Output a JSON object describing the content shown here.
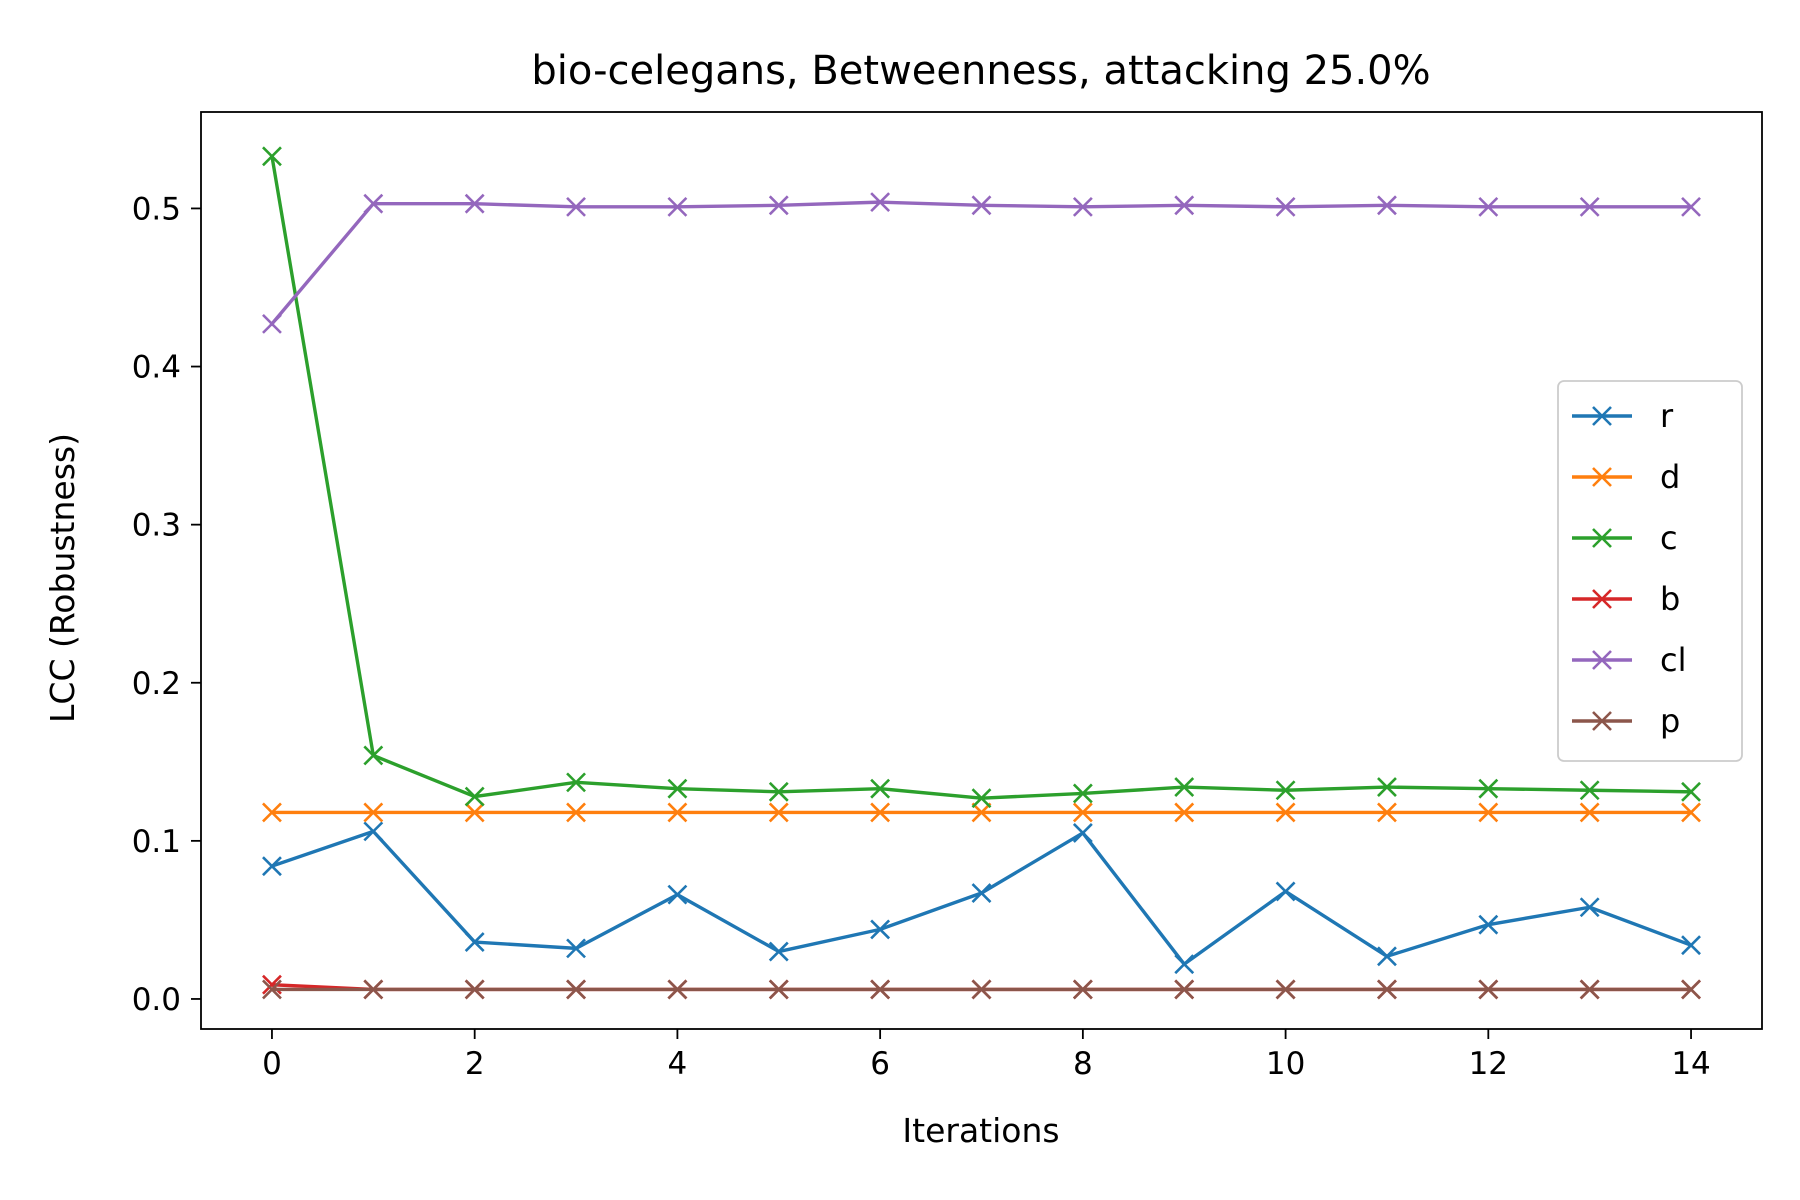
{
  "chart_data": {
    "type": "line",
    "title": "bio-celegans, Betweenness, attacking 25.0%",
    "xlabel": "Iterations",
    "ylabel": "LCC (Robustness)",
    "xlim": [
      -0.7,
      14.7
    ],
    "ylim": [
      -0.019,
      0.561
    ],
    "xticks": [
      0,
      2,
      4,
      6,
      8,
      10,
      12,
      14
    ],
    "xtick_labels": [
      "0",
      "2",
      "4",
      "6",
      "8",
      "10",
      "12",
      "14"
    ],
    "yticks": [
      0.0,
      0.1,
      0.2,
      0.3,
      0.4,
      0.5
    ],
    "ytick_labels": [
      "0.0",
      "0.1",
      "0.2",
      "0.3",
      "0.4",
      "0.5"
    ],
    "grid": false,
    "legend_position": "center-right",
    "marker": "x",
    "x": [
      0,
      1,
      2,
      3,
      4,
      5,
      6,
      7,
      8,
      9,
      10,
      11,
      12,
      13,
      14
    ],
    "series": [
      {
        "name": "r",
        "color": "#1f77b4",
        "values": [
          0.084,
          0.106,
          0.036,
          0.032,
          0.066,
          0.03,
          0.044,
          0.067,
          0.105,
          0.022,
          0.068,
          0.027,
          0.047,
          0.058,
          0.034
        ]
      },
      {
        "name": "d",
        "color": "#ff7f0e",
        "values": [
          0.118,
          0.118,
          0.118,
          0.118,
          0.118,
          0.118,
          0.118,
          0.118,
          0.118,
          0.118,
          0.118,
          0.118,
          0.118,
          0.118,
          0.118
        ]
      },
      {
        "name": "c",
        "color": "#2ca02c",
        "values": [
          0.533,
          0.154,
          0.128,
          0.137,
          0.133,
          0.131,
          0.133,
          0.127,
          0.13,
          0.134,
          0.132,
          0.134,
          0.133,
          0.132,
          0.131
        ]
      },
      {
        "name": "b",
        "color": "#d62728",
        "values": [
          0.009,
          0.006,
          0.006,
          0.006,
          0.006,
          0.006,
          0.006,
          0.006,
          0.006,
          0.006,
          0.006,
          0.006,
          0.006,
          0.006,
          0.006
        ]
      },
      {
        "name": "cl",
        "color": "#9467bd",
        "values": [
          0.427,
          0.503,
          0.503,
          0.501,
          0.501,
          0.502,
          0.504,
          0.502,
          0.501,
          0.502,
          0.501,
          0.502,
          0.501,
          0.501,
          0.501
        ]
      },
      {
        "name": "p",
        "color": "#8c564b",
        "values": [
          0.006,
          0.006,
          0.006,
          0.006,
          0.006,
          0.006,
          0.006,
          0.006,
          0.006,
          0.006,
          0.006,
          0.006,
          0.006,
          0.006,
          0.006
        ]
      }
    ]
  }
}
